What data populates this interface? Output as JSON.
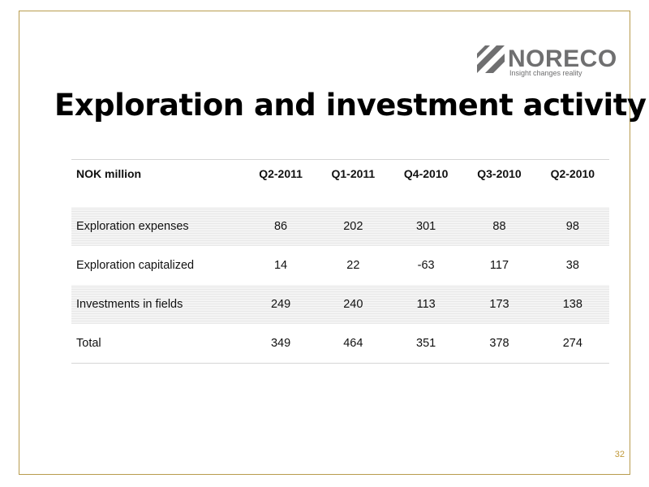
{
  "logo": {
    "brand": "NORECO",
    "tagline": "Insight changes reality"
  },
  "title": "Exploration and investment activity",
  "table": {
    "columns": [
      "NOK million",
      "Q2-2011",
      "Q1-2011",
      "Q4-2010",
      "Q3-2010",
      "Q2-2010"
    ],
    "rows": [
      {
        "label": "Exploration expenses",
        "values": [
          "86",
          "202",
          "301",
          "88",
          "98"
        ]
      },
      {
        "label": "Exploration capitalized",
        "values": [
          "14",
          "22",
          "-63",
          "117",
          "38"
        ]
      },
      {
        "label": "Investments in fields",
        "values": [
          "249",
          "240",
          "113",
          "173",
          "138"
        ]
      },
      {
        "label": "Total",
        "values": [
          "349",
          "464",
          "351",
          "378",
          "274"
        ]
      }
    ]
  },
  "page_number": "32",
  "colors": {
    "accent": "#c19a3c",
    "frame": "#b89c4e",
    "logo_gray": "#6f6f70"
  }
}
